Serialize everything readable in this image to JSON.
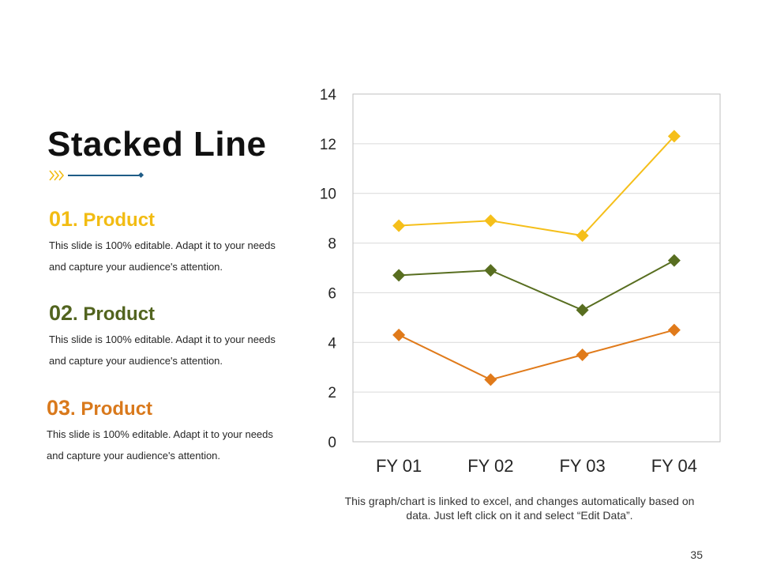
{
  "slide": {
    "title": "Stacked Line",
    "page_number": "35",
    "note": "This graph/chart is linked to excel, and changes automatically based on data. Just left click on it and select “Edit Data”."
  },
  "products": [
    {
      "number": "01",
      "label": ". Product",
      "color": "#F2BC13",
      "text": "This slide is 100% editable. Adapt it to your needs and capture your audience's attention."
    },
    {
      "number": "02",
      "label": ". Product",
      "color": "#52641F",
      "text": "This slide is 100% editable. Adapt it to your needs and capture your audience's attention."
    },
    {
      "number": "03",
      "label": ". Product",
      "color": "#D9791C",
      "text": "This slide is 100% editable. Adapt it to your needs and capture your audience's attention."
    }
  ],
  "colors": {
    "accent_yellow": "#F2BC13",
    "accent_blue": "#1F5C86"
  },
  "icons": {
    "title_decoration": "double-chevron-arrow-icon"
  },
  "chart_data": {
    "type": "line",
    "categories": [
      "FY 01",
      "FY 02",
      "FY 03",
      "FY 04"
    ],
    "series": [
      {
        "color": "#F5BF1A",
        "values": [
          8.7,
          8.9,
          8.3,
          12.3
        ]
      },
      {
        "color": "#586E20",
        "values": [
          6.7,
          6.9,
          5.3,
          7.3
        ]
      },
      {
        "color": "#E07A1A",
        "values": [
          4.3,
          2.5,
          3.5,
          4.5
        ]
      }
    ],
    "ylim": [
      0,
      14
    ],
    "yticks": [
      0,
      2,
      4,
      6,
      8,
      10,
      12,
      14
    ],
    "grid": true,
    "legend": "none",
    "marker": "diamond"
  }
}
